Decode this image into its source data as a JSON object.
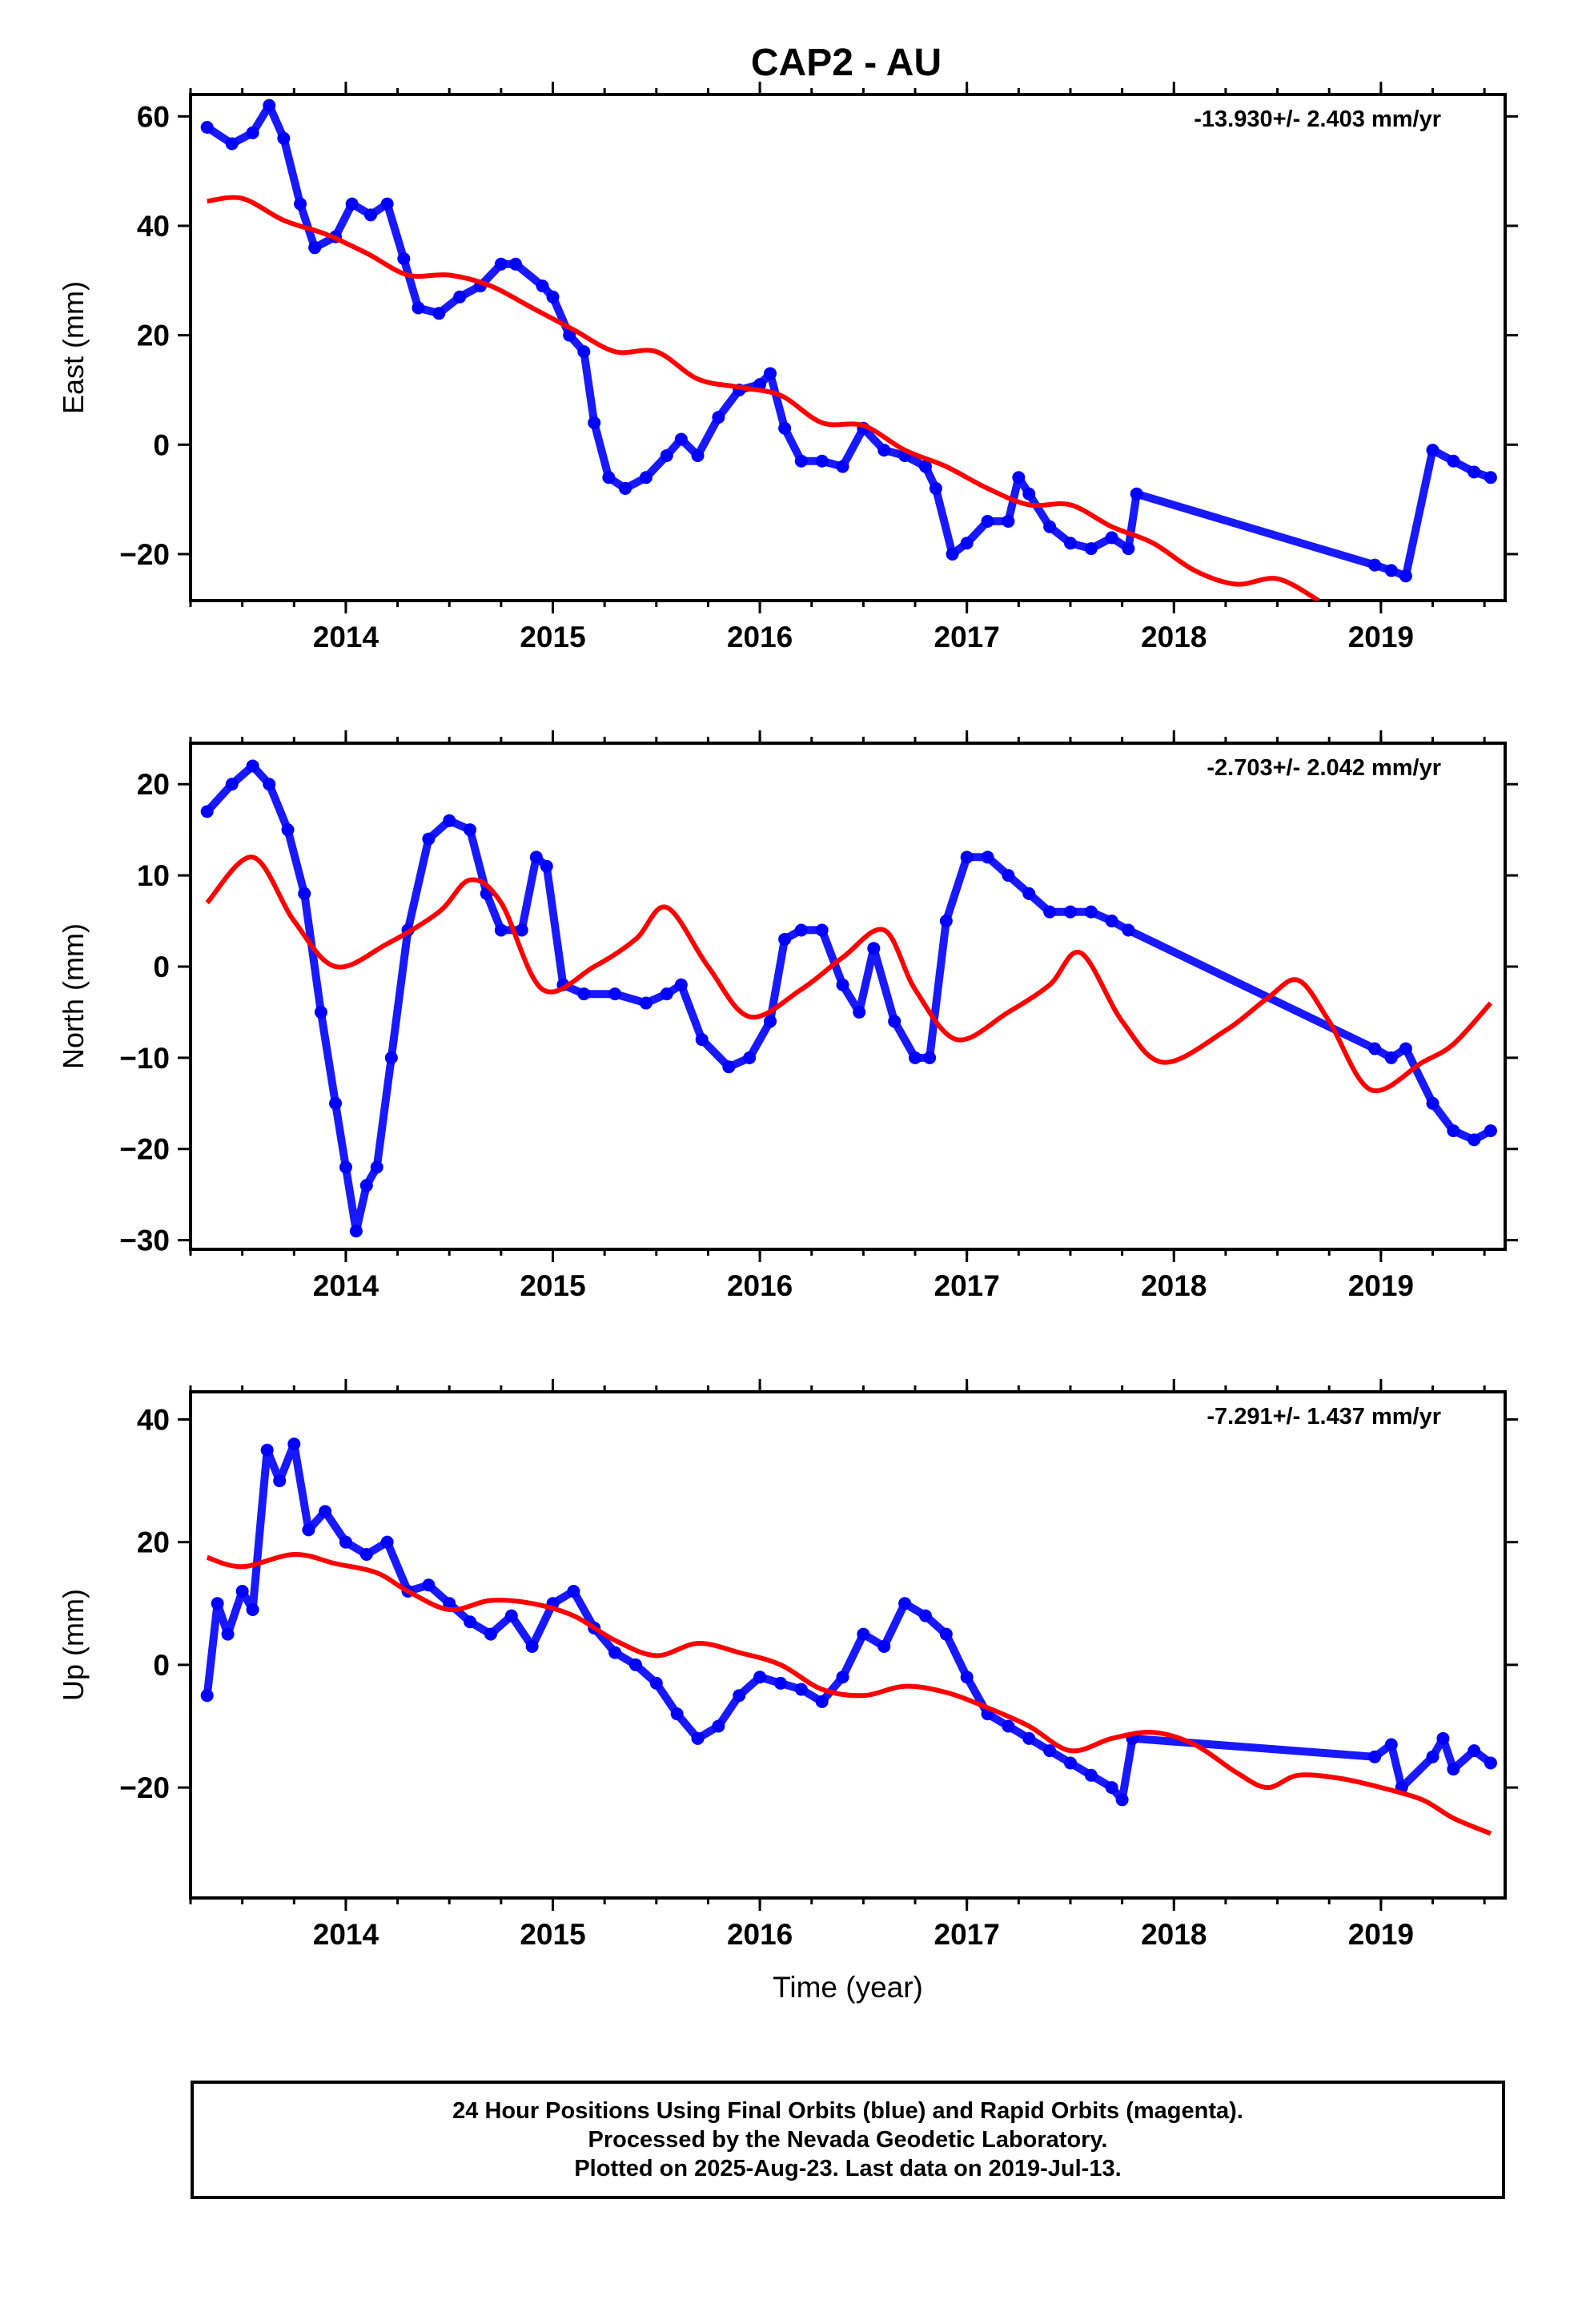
{
  "title": "CAP2 - AU",
  "xlabel": "Time (year)",
  "colors": {
    "data": "#0000ff",
    "model": "#ff0000",
    "axis": "#000000"
  },
  "footer": {
    "line1": "24 Hour Positions Using Final Orbits (blue) and Rapid Orbits (magenta).",
    "line2": "Processed by the Nevada Geodetic Laboratory.",
    "line3": "Plotted on 2025-Aug-23. Last data on 2019-Jul-13."
  },
  "chart_data": [
    {
      "type": "scatter",
      "component": "east",
      "ylabel": "East (mm)",
      "rate": "-13.930+/- 2.403 mm/yr",
      "xlim": [
        2013.25,
        2019.6
      ],
      "ylim": [
        -28.5,
        64
      ],
      "yticks": [
        60,
        40,
        20,
        0,
        -20
      ],
      "xticks": [
        2014,
        2015,
        2016,
        2017,
        2018,
        2019
      ],
      "series": [
        {
          "kind": "points",
          "x": [
            2013.33,
            2013.45,
            2013.55,
            2013.63,
            2013.7,
            2013.78,
            2013.85,
            2013.95,
            2014.03,
            2014.12,
            2014.2,
            2014.28,
            2014.35,
            2014.45,
            2014.55,
            2014.65,
            2014.75,
            2014.82,
            2014.95,
            2015.0,
            2015.08,
            2015.15,
            2015.2,
            2015.27,
            2015.35,
            2015.45,
            2015.55,
            2015.62,
            2015.7,
            2015.8,
            2015.9,
            2016.0,
            2016.05,
            2016.12,
            2016.2,
            2016.3,
            2016.4,
            2016.5,
            2016.6,
            2016.7,
            2016.8,
            2016.85,
            2016.93,
            2017.0,
            2017.1,
            2017.2,
            2017.25,
            2017.3,
            2017.4,
            2017.5,
            2017.6,
            2017.7,
            2017.78,
            2017.82,
            2018.97,
            2019.05,
            2019.12,
            2019.25,
            2019.35,
            2019.45,
            2019.53
          ],
          "y": [
            58,
            55,
            57,
            62,
            56,
            44,
            36,
            38,
            44,
            42,
            44,
            34,
            25,
            24,
            27,
            29,
            33,
            33,
            29,
            27,
            20,
            17,
            4,
            -6,
            -8,
            -6,
            -2,
            1,
            -2,
            5,
            10,
            11,
            13,
            3,
            -3,
            -3,
            -4,
            3,
            -1,
            -2,
            -4,
            -8,
            -20,
            -18,
            -14,
            -14,
            -6,
            -9,
            -15,
            -18,
            -19,
            -17,
            -19,
            -9,
            -22,
            -23,
            -24,
            -1,
            -3,
            -5,
            -6
          ]
        },
        {
          "kind": "line",
          "x": [
            2013.33,
            2013.5,
            2013.7,
            2013.9,
            2014.1,
            2014.3,
            2014.5,
            2014.7,
            2014.9,
            2015.1,
            2015.3,
            2015.5,
            2015.7,
            2015.9,
            2016.1,
            2016.3,
            2016.5,
            2016.7,
            2016.9,
            2017.1,
            2017.3,
            2017.5,
            2017.7,
            2017.9,
            2018.1,
            2018.3,
            2018.5,
            2018.7
          ],
          "y": [
            44.5,
            45,
            41,
            38.5,
            35,
            31,
            31,
            29,
            25,
            21,
            17,
            17,
            12,
            10.5,
            9,
            4,
            3.5,
            -1,
            -4,
            -8,
            -11,
            -11,
            -15,
            -18,
            -23,
            -25.5,
            -24.5,
            -28.5
          ]
        }
      ]
    },
    {
      "type": "scatter",
      "component": "north",
      "ylabel": "North (mm)",
      "rate": "-2.703+/- 2.042 mm/yr",
      "xlim": [
        2013.25,
        2019.6
      ],
      "ylim": [
        -31,
        24.5
      ],
      "yticks": [
        20,
        10,
        0,
        -10,
        -20,
        -30
      ],
      "xticks": [
        2014,
        2015,
        2016,
        2017,
        2018,
        2019
      ],
      "series": [
        {
          "kind": "points",
          "x": [
            2013.33,
            2013.45,
            2013.55,
            2013.63,
            2013.72,
            2013.8,
            2013.88,
            2013.95,
            2014.0,
            2014.05,
            2014.1,
            2014.15,
            2014.22,
            2014.3,
            2014.4,
            2014.5,
            2014.6,
            2014.68,
            2014.75,
            2014.85,
            2014.92,
            2014.97,
            2015.05,
            2015.15,
            2015.3,
            2015.45,
            2015.55,
            2015.62,
            2015.72,
            2015.85,
            2015.95,
            2016.05,
            2016.12,
            2016.2,
            2016.3,
            2016.4,
            2016.48,
            2016.55,
            2016.65,
            2016.75,
            2016.82,
            2016.9,
            2017.0,
            2017.1,
            2017.2,
            2017.3,
            2017.4,
            2017.5,
            2017.6,
            2017.7,
            2017.78,
            2018.97,
            2019.05,
            2019.12,
            2019.25,
            2019.35,
            2019.45,
            2019.53
          ],
          "y": [
            17,
            20,
            22,
            20,
            15,
            8,
            -5,
            -15,
            -22,
            -29,
            -24,
            -22,
            -10,
            4,
            14,
            16,
            15,
            8,
            4,
            4,
            12,
            11,
            -2,
            -3,
            -3,
            -4,
            -3,
            -2,
            -8,
            -11,
            -10,
            -6,
            3,
            4,
            4,
            -2,
            -5,
            2,
            -6,
            -10,
            -10,
            5,
            12,
            12,
            10,
            8,
            6,
            6,
            6,
            5,
            4,
            -9,
            -10,
            -9,
            -15,
            -18,
            -19,
            -18
          ]
        },
        {
          "kind": "line",
          "x": [
            2013.33,
            2013.55,
            2013.75,
            2013.95,
            2014.2,
            2014.45,
            2014.6,
            2014.75,
            2014.95,
            2015.2,
            2015.4,
            2015.55,
            2015.75,
            2015.95,
            2016.2,
            2016.4,
            2016.6,
            2016.75,
            2016.95,
            2017.2,
            2017.4,
            2017.55,
            2017.75,
            2017.95,
            2018.25,
            2018.45,
            2018.6,
            2018.75,
            2018.95,
            2019.2,
            2019.35,
            2019.53
          ],
          "y": [
            7,
            12,
            5,
            0,
            2.5,
            6,
            9.5,
            7,
            -2.5,
            0,
            3,
            6.5,
            0,
            -5.5,
            -2.5,
            1,
            4,
            -2.5,
            -8,
            -5,
            -2,
            1.5,
            -6,
            -10.5,
            -7,
            -3.5,
            -1.5,
            -6,
            -13.5,
            -10.5,
            -8.5,
            -4
          ]
        }
      ]
    },
    {
      "type": "scatter",
      "component": "up",
      "ylabel": "Up (mm)",
      "rate": "-7.291+/- 1.437 mm/yr",
      "xlim": [
        2013.25,
        2019.6
      ],
      "ylim": [
        -38,
        44.5
      ],
      "yticks": [
        40,
        20,
        0,
        -20
      ],
      "xticks": [
        2014,
        2015,
        2016,
        2017,
        2018,
        2019
      ],
      "series": [
        {
          "kind": "points",
          "x": [
            2013.33,
            2013.38,
            2013.43,
            2013.5,
            2013.55,
            2013.62,
            2013.68,
            2013.75,
            2013.82,
            2013.9,
            2014.0,
            2014.1,
            2014.2,
            2014.3,
            2014.4,
            2014.5,
            2014.6,
            2014.7,
            2014.8,
            2014.9,
            2015.0,
            2015.1,
            2015.2,
            2015.3,
            2015.4,
            2015.5,
            2015.6,
            2015.7,
            2015.8,
            2015.9,
            2016.0,
            2016.1,
            2016.2,
            2016.3,
            2016.4,
            2016.5,
            2016.6,
            2016.7,
            2016.8,
            2016.9,
            2017.0,
            2017.1,
            2017.2,
            2017.3,
            2017.4,
            2017.5,
            2017.6,
            2017.7,
            2017.75,
            2017.8,
            2018.97,
            2019.05,
            2019.1,
            2019.25,
            2019.3,
            2019.35,
            2019.45,
            2019.53
          ],
          "y": [
            -5,
            10,
            5,
            12,
            9,
            35,
            30,
            36,
            22,
            25,
            20,
            18,
            20,
            12,
            13,
            10,
            7,
            5,
            8,
            3,
            10,
            12,
            6,
            2,
            0,
            -3,
            -8,
            -12,
            -10,
            -5,
            -2,
            -3,
            -4,
            -6,
            -2,
            5,
            3,
            10,
            8,
            5,
            -2,
            -8,
            -10,
            -12,
            -14,
            -16,
            -18,
            -20,
            -22,
            -12,
            -15,
            -13,
            -20,
            -15,
            -12,
            -17,
            -14,
            -16
          ]
        },
        {
          "kind": "line",
          "x": [
            2013.33,
            2013.5,
            2013.75,
            2013.95,
            2014.15,
            2014.3,
            2014.5,
            2014.7,
            2014.9,
            2015.1,
            2015.3,
            2015.5,
            2015.7,
            2015.9,
            2016.1,
            2016.3,
            2016.5,
            2016.7,
            2016.9,
            2017.1,
            2017.3,
            2017.5,
            2017.7,
            2017.9,
            2018.1,
            2018.3,
            2018.45,
            2018.6,
            2018.8,
            2019.0,
            2019.2,
            2019.35,
            2019.53
          ],
          "y": [
            17.5,
            16,
            18,
            16.5,
            15,
            12,
            9,
            10.5,
            10,
            8,
            4,
            1.5,
            3.5,
            2,
            0,
            -4,
            -5,
            -3.5,
            -4.5,
            -7,
            -10,
            -14,
            -12,
            -11,
            -13,
            -17.5,
            -20,
            -18,
            -18.5,
            -20,
            -22,
            -25,
            -27.5
          ]
        }
      ]
    }
  ]
}
